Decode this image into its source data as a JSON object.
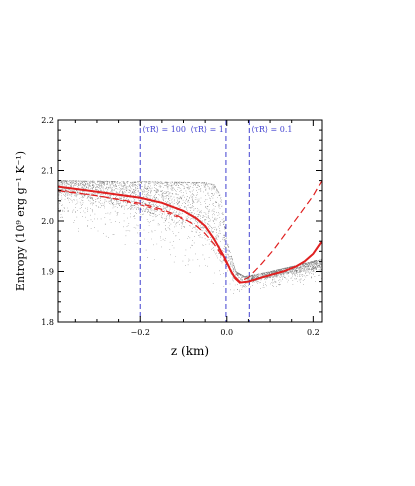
{
  "chart_data": {
    "type": "scatter",
    "xlabel": "z (km)",
    "ylabel": "Entropy (10⁹ erg g⁻¹ K⁻¹)",
    "xlim": [
      -0.39,
      0.22
    ],
    "ylim": [
      1.8,
      2.2
    ],
    "xticks": [
      -0.2,
      0.0,
      0.2
    ],
    "xtick_labels": [
      "−0.2",
      "0.0",
      "0.2"
    ],
    "yticks": [
      1.8,
      1.9,
      2.0,
      2.1,
      2.2
    ],
    "ytick_labels": [
      "1.8",
      "1.9",
      "2.0",
      "2.1",
      "2.2"
    ],
    "grid": false,
    "reference_lines": [
      {
        "x": -0.2,
        "label": "⟨τR⟩ = 100",
        "color": "#4040d0"
      },
      {
        "x": -0.002,
        "label": "⟨τR⟩ = 1",
        "color": "#4040d0"
      },
      {
        "x": 0.052,
        "label": "⟨τR⟩ = 0.1",
        "color": "#4040d0"
      }
    ],
    "series": [
      {
        "style": "solid",
        "color": "#e02020",
        "x": [
          -0.39,
          -0.3,
          -0.25,
          -0.2,
          -0.15,
          -0.1,
          -0.07,
          -0.05,
          -0.03,
          -0.01,
          0.0,
          0.01,
          0.02,
          0.03,
          0.05,
          0.08,
          0.1,
          0.13,
          0.16,
          0.18,
          0.2,
          0.22
        ],
        "y": [
          2.068,
          2.058,
          2.052,
          2.046,
          2.036,
          2.02,
          2.005,
          1.99,
          1.965,
          1.935,
          1.918,
          1.9,
          1.886,
          1.878,
          1.88,
          1.888,
          1.893,
          1.9,
          1.91,
          1.92,
          1.935,
          1.96
        ]
      },
      {
        "style": "dashed",
        "color": "#e02020",
        "x": [
          -0.39,
          -0.3,
          -0.25,
          -0.2,
          -0.15,
          -0.12,
          -0.09,
          -0.07,
          -0.05,
          -0.03,
          -0.01,
          0.0,
          0.01,
          0.02,
          0.03,
          0.05,
          0.08,
          0.11,
          0.14,
          0.17,
          0.2,
          0.22
        ],
        "y": [
          2.06,
          2.05,
          2.043,
          2.035,
          2.023,
          2.013,
          2.0,
          1.99,
          1.975,
          1.955,
          1.93,
          1.915,
          1.9,
          1.889,
          1.88,
          1.888,
          1.915,
          1.945,
          1.98,
          2.015,
          2.05,
          2.08
        ]
      },
      {
        "style": "dashed-thin",
        "color": "#e02020",
        "x": [
          -0.39,
          -0.3,
          -0.25,
          -0.2,
          -0.15,
          -0.12,
          -0.1
        ],
        "y": [
          2.062,
          2.05,
          2.042,
          2.032,
          2.02,
          2.01,
          2.003
        ]
      }
    ],
    "scatter_cloud": {
      "color": "#000000",
      "upper_envelope": {
        "x": [
          -0.39,
          -0.3,
          -0.2,
          -0.1,
          -0.05,
          -0.03,
          -0.015,
          0.0,
          0.02,
          0.04,
          0.06,
          0.1,
          0.15,
          0.22
        ],
        "y": [
          2.08,
          2.079,
          2.078,
          2.077,
          2.076,
          2.072,
          2.05,
          1.96,
          1.9,
          1.89,
          1.893,
          1.9,
          1.91,
          1.925
        ]
      },
      "lower_envelope": {
        "x": [
          -0.39,
          -0.3,
          -0.2,
          -0.1,
          -0.05,
          0.0,
          0.02,
          0.05,
          0.1,
          0.15,
          0.22
        ],
        "y": [
          1.99,
          1.965,
          1.93,
          1.89,
          1.87,
          1.855,
          1.853,
          1.86,
          1.865,
          1.87,
          1.875
        ]
      },
      "band_center": {
        "x": [
          -0.39,
          -0.3,
          -0.2,
          -0.1,
          -0.05,
          0.0,
          0.05,
          0.1,
          0.15,
          0.22
        ],
        "y": [
          2.07,
          2.06,
          2.045,
          2.02,
          2.0,
          1.93,
          1.885,
          1.895,
          1.905,
          1.915
        ]
      }
    }
  }
}
